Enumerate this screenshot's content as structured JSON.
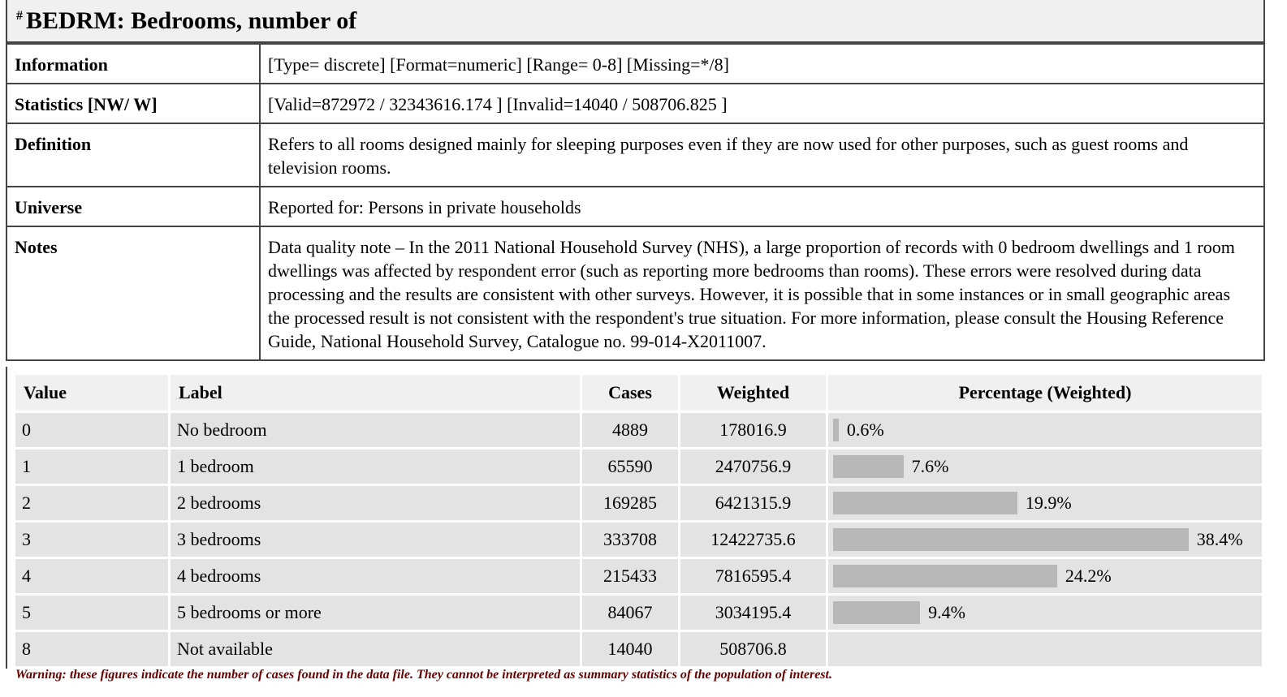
{
  "header": {
    "hash": "#",
    "title": "BEDRM: Bedrooms, number of"
  },
  "info_rows": [
    {
      "key": "Information",
      "value": "[Type= discrete] [Format=numeric] [Range= 0-8] [Missing=*/8]"
    },
    {
      "key": "Statistics [NW/ W]",
      "value": "[Valid=872972 / 32343616.174 ] [Invalid=14040 / 508706.825 ]"
    },
    {
      "key": "Definition",
      "value": "Refers to all rooms designed mainly for sleeping purposes even if they are now used for other purposes, such as guest rooms and television rooms."
    },
    {
      "key": "Universe",
      "value": "Reported for: Persons in private households"
    },
    {
      "key": "Notes",
      "value": "Data quality note – In the 2011 National Household Survey (NHS), a large proportion of records with 0 bedroom dwellings and 1 room dwellings was affected by respondent error (such as reporting more bedrooms than rooms). These errors were resolved during data processing and the results are consistent with other surveys. However, it is possible that in some instances or in small geographic areas the processed result is not consistent with the respondent's true situation. For more information, please consult the Housing Reference Guide, National Household Survey, Catalogue no. 99-014-X2011007."
    }
  ],
  "freq_table": {
    "headers": {
      "value": "Value",
      "label": "Label",
      "cases": "Cases",
      "weighted": "Weighted",
      "percentage": "Percentage (Weighted)"
    },
    "rows": [
      {
        "value": "0",
        "label": "No bedroom",
        "cases": "4889",
        "weighted": "178016.9",
        "pct": 0.6,
        "pct_label": "0.6%"
      },
      {
        "value": "1",
        "label": "1 bedroom",
        "cases": "65590",
        "weighted": "2470756.9",
        "pct": 7.6,
        "pct_label": "7.6%"
      },
      {
        "value": "2",
        "label": "2 bedrooms",
        "cases": "169285",
        "weighted": "6421315.9",
        "pct": 19.9,
        "pct_label": "19.9%"
      },
      {
        "value": "3",
        "label": "3 bedrooms",
        "cases": "333708",
        "weighted": "12422735.6",
        "pct": 38.4,
        "pct_label": "38.4%"
      },
      {
        "value": "4",
        "label": "4 bedrooms",
        "cases": "215433",
        "weighted": "7816595.4",
        "pct": 24.2,
        "pct_label": "24.2%"
      },
      {
        "value": "5",
        "label": "5 bedrooms or more",
        "cases": "84067",
        "weighted": "3034195.4",
        "pct": 9.4,
        "pct_label": "9.4%"
      },
      {
        "value": "8",
        "label": "Not available",
        "cases": "14040",
        "weighted": "508706.8",
        "pct": null,
        "pct_label": ""
      }
    ],
    "bar_color": "#b8b8b8"
  },
  "warning": "Warning: these figures indicate the number of cases found in the data file. They cannot be interpreted as summary statistics of the population of interest."
}
